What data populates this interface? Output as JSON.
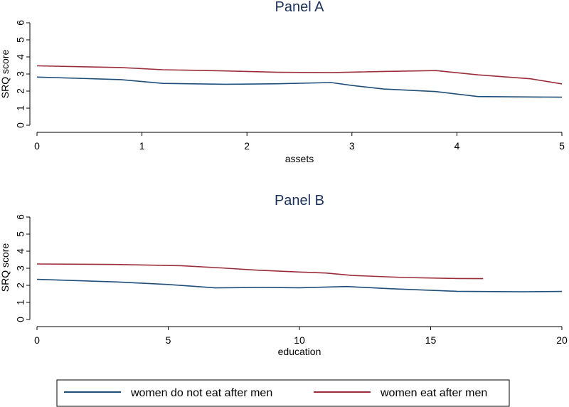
{
  "colors": {
    "series_not_eat_after": "#1f4e79",
    "series_eat_after": "#9b2d3a",
    "axis": "#000000",
    "title": "#1a2f5a"
  },
  "legend": {
    "items": [
      {
        "label": "women do not eat after men",
        "color": "#1f4e79"
      },
      {
        "label": "women eat after men",
        "color": "#9b2d3a"
      }
    ]
  },
  "chart_data": [
    {
      "type": "line",
      "title": "Panel A",
      "xlabel": "assets",
      "ylabel": "SRQ score",
      "xlim": [
        0,
        5
      ],
      "ylim": [
        0,
        6
      ],
      "xticks": [
        0,
        1,
        2,
        3,
        4,
        5
      ],
      "yticks": [
        0,
        1,
        2,
        3,
        4,
        5,
        6
      ],
      "series": [
        {
          "name": "women do not eat after men",
          "points": [
            [
              0,
              2.82
            ],
            [
              0.8,
              2.67
            ],
            [
              1.2,
              2.45
            ],
            [
              1.8,
              2.4
            ],
            [
              2.3,
              2.43
            ],
            [
              2.8,
              2.5
            ],
            [
              3.0,
              2.33
            ],
            [
              3.3,
              2.12
            ],
            [
              3.8,
              1.97
            ],
            [
              4.2,
              1.68
            ],
            [
              5.0,
              1.64
            ]
          ]
        },
        {
          "name": "women eat after men",
          "points": [
            [
              0,
              3.48
            ],
            [
              0.8,
              3.38
            ],
            [
              1.2,
              3.25
            ],
            [
              1.8,
              3.18
            ],
            [
              2.3,
              3.1
            ],
            [
              2.8,
              3.08
            ],
            [
              3.3,
              3.15
            ],
            [
              3.8,
              3.2
            ],
            [
              4.2,
              2.95
            ],
            [
              4.7,
              2.72
            ],
            [
              5.0,
              2.42
            ]
          ]
        }
      ]
    },
    {
      "type": "line",
      "title": "Panel B",
      "xlabel": "education",
      "ylabel": "SRQ score",
      "xlim": [
        0,
        20
      ],
      "ylim": [
        0,
        6
      ],
      "xticks": [
        0,
        5,
        10,
        15,
        20
      ],
      "yticks": [
        0,
        1,
        2,
        3,
        4,
        5,
        6
      ],
      "series": [
        {
          "name": "women do not eat after men",
          "points": [
            [
              0,
              2.35
            ],
            [
              3,
              2.2
            ],
            [
              5,
              2.05
            ],
            [
              6.8,
              1.85
            ],
            [
              8.5,
              1.88
            ],
            [
              10,
              1.86
            ],
            [
              11.8,
              1.93
            ],
            [
              13.5,
              1.8
            ],
            [
              16,
              1.65
            ],
            [
              18.5,
              1.62
            ],
            [
              20,
              1.64
            ]
          ]
        },
        {
          "name": "women eat after men",
          "points": [
            [
              0,
              3.25
            ],
            [
              3,
              3.22
            ],
            [
              5.5,
              3.15
            ],
            [
              7,
              3.02
            ],
            [
              8.5,
              2.88
            ],
            [
              10,
              2.78
            ],
            [
              11,
              2.72
            ],
            [
              12,
              2.58
            ],
            [
              14,
              2.46
            ],
            [
              16,
              2.4
            ],
            [
              17,
              2.39
            ]
          ]
        }
      ]
    }
  ]
}
